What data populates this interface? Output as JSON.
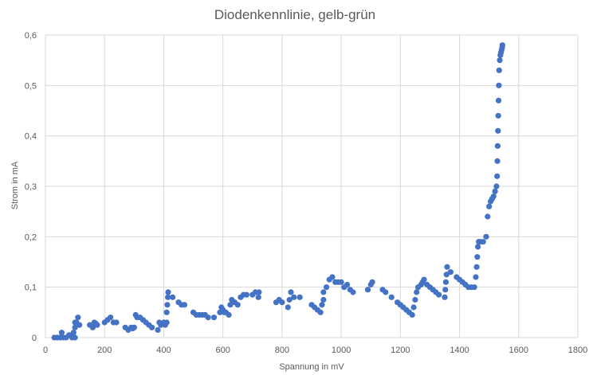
{
  "chart_data": {
    "type": "scatter",
    "title": "Diodenkennlinie, gelb-grün",
    "xlabel": "Spannung in mV",
    "ylabel": "Strom in mA",
    "xlim": [
      0,
      1800
    ],
    "ylim": [
      0,
      0.6
    ],
    "x_ticks": [
      "0",
      "200",
      "400",
      "600",
      "800",
      "1000",
      "1200",
      "1400",
      "1600",
      "1800"
    ],
    "y_ticks": [
      "0",
      "0,1",
      "0,2",
      "0,3",
      "0,4",
      "0,5",
      "0,6"
    ],
    "grid": true,
    "legend": "none",
    "marker_color": "#4472c4",
    "series": [
      {
        "points": [
          [
            30,
            0.0
          ],
          [
            40,
            0.0
          ],
          [
            50,
            0.0
          ],
          [
            55,
            0.01
          ],
          [
            60,
            0.0
          ],
          [
            70,
            0.0
          ],
          [
            80,
            0.005
          ],
          [
            90,
            0.0
          ],
          [
            95,
            0.01
          ],
          [
            100,
            0.0
          ],
          [
            100,
            0.02
          ],
          [
            100,
            0.03
          ],
          [
            105,
            0.03
          ],
          [
            110,
            0.04
          ],
          [
            115,
            0.025
          ],
          [
            150,
            0.025
          ],
          [
            160,
            0.02
          ],
          [
            165,
            0.03
          ],
          [
            170,
            0.028
          ],
          [
            175,
            0.025
          ],
          [
            200,
            0.03
          ],
          [
            210,
            0.035
          ],
          [
            220,
            0.04
          ],
          [
            230,
            0.03
          ],
          [
            240,
            0.03
          ],
          [
            270,
            0.02
          ],
          [
            280,
            0.015
          ],
          [
            290,
            0.02
          ],
          [
            295,
            0.018
          ],
          [
            300,
            0.02
          ],
          [
            305,
            0.045
          ],
          [
            310,
            0.04
          ],
          [
            320,
            0.04
          ],
          [
            330,
            0.035
          ],
          [
            340,
            0.03
          ],
          [
            350,
            0.025
          ],
          [
            360,
            0.02
          ],
          [
            380,
            0.015
          ],
          [
            385,
            0.03
          ],
          [
            390,
            0.025
          ],
          [
            400,
            0.03
          ],
          [
            405,
            0.025
          ],
          [
            410,
            0.03
          ],
          [
            410,
            0.05
          ],
          [
            412,
            0.065
          ],
          [
            414,
            0.08
          ],
          [
            415,
            0.09
          ],
          [
            430,
            0.08
          ],
          [
            450,
            0.07
          ],
          [
            460,
            0.065
          ],
          [
            470,
            0.065
          ],
          [
            500,
            0.05
          ],
          [
            510,
            0.045
          ],
          [
            520,
            0.045
          ],
          [
            530,
            0.045
          ],
          [
            540,
            0.045
          ],
          [
            550,
            0.04
          ],
          [
            570,
            0.04
          ],
          [
            590,
            0.05
          ],
          [
            595,
            0.06
          ],
          [
            600,
            0.055
          ],
          [
            605,
            0.05
          ],
          [
            610,
            0.05
          ],
          [
            620,
            0.045
          ],
          [
            625,
            0.065
          ],
          [
            630,
            0.075
          ],
          [
            640,
            0.07
          ],
          [
            650,
            0.065
          ],
          [
            660,
            0.08
          ],
          [
            670,
            0.085
          ],
          [
            680,
            0.085
          ],
          [
            700,
            0.085
          ],
          [
            710,
            0.09
          ],
          [
            720,
            0.08
          ],
          [
            722,
            0.09
          ],
          [
            780,
            0.07
          ],
          [
            790,
            0.075
          ],
          [
            800,
            0.07
          ],
          [
            820,
            0.06
          ],
          [
            825,
            0.075
          ],
          [
            830,
            0.09
          ],
          [
            840,
            0.08
          ],
          [
            860,
            0.08
          ],
          [
            900,
            0.065
          ],
          [
            910,
            0.06
          ],
          [
            920,
            0.055
          ],
          [
            930,
            0.05
          ],
          [
            935,
            0.065
          ],
          [
            940,
            0.075
          ],
          [
            940,
            0.09
          ],
          [
            950,
            0.1
          ],
          [
            960,
            0.115
          ],
          [
            970,
            0.12
          ],
          [
            980,
            0.11
          ],
          [
            990,
            0.11
          ],
          [
            1000,
            0.11
          ],
          [
            1010,
            0.1
          ],
          [
            1020,
            0.105
          ],
          [
            1030,
            0.095
          ],
          [
            1040,
            0.09
          ],
          [
            1090,
            0.095
          ],
          [
            1100,
            0.105
          ],
          [
            1105,
            0.11
          ],
          [
            1140,
            0.095
          ],
          [
            1150,
            0.09
          ],
          [
            1170,
            0.08
          ],
          [
            1190,
            0.07
          ],
          [
            1200,
            0.065
          ],
          [
            1210,
            0.06
          ],
          [
            1220,
            0.055
          ],
          [
            1230,
            0.05
          ],
          [
            1240,
            0.045
          ],
          [
            1245,
            0.06
          ],
          [
            1250,
            0.075
          ],
          [
            1255,
            0.09
          ],
          [
            1260,
            0.1
          ],
          [
            1270,
            0.105
          ],
          [
            1275,
            0.11
          ],
          [
            1280,
            0.115
          ],
          [
            1290,
            0.105
          ],
          [
            1300,
            0.1
          ],
          [
            1310,
            0.095
          ],
          [
            1320,
            0.09
          ],
          [
            1330,
            0.085
          ],
          [
            1350,
            0.08
          ],
          [
            1352,
            0.095
          ],
          [
            1354,
            0.11
          ],
          [
            1356,
            0.125
          ],
          [
            1358,
            0.14
          ],
          [
            1370,
            0.13
          ],
          [
            1390,
            0.12
          ],
          [
            1400,
            0.115
          ],
          [
            1410,
            0.11
          ],
          [
            1420,
            0.105
          ],
          [
            1430,
            0.1
          ],
          [
            1440,
            0.1
          ],
          [
            1450,
            0.1
          ],
          [
            1455,
            0.12
          ],
          [
            1458,
            0.14
          ],
          [
            1460,
            0.16
          ],
          [
            1462,
            0.18
          ],
          [
            1465,
            0.19
          ],
          [
            1470,
            0.19
          ],
          [
            1480,
            0.19
          ],
          [
            1490,
            0.2
          ],
          [
            1495,
            0.24
          ],
          [
            1500,
            0.26
          ],
          [
            1505,
            0.27
          ],
          [
            1510,
            0.275
          ],
          [
            1515,
            0.28
          ],
          [
            1520,
            0.29
          ],
          [
            1525,
            0.3
          ],
          [
            1527,
            0.32
          ],
          [
            1528,
            0.35
          ],
          [
            1529,
            0.38
          ],
          [
            1530,
            0.41
          ],
          [
            1531,
            0.44
          ],
          [
            1532,
            0.47
          ],
          [
            1533,
            0.5
          ],
          [
            1534,
            0.53
          ],
          [
            1536,
            0.55
          ],
          [
            1538,
            0.56
          ],
          [
            1540,
            0.565
          ],
          [
            1542,
            0.57
          ],
          [
            1544,
            0.575
          ],
          [
            1545,
            0.58
          ]
        ]
      }
    ]
  }
}
